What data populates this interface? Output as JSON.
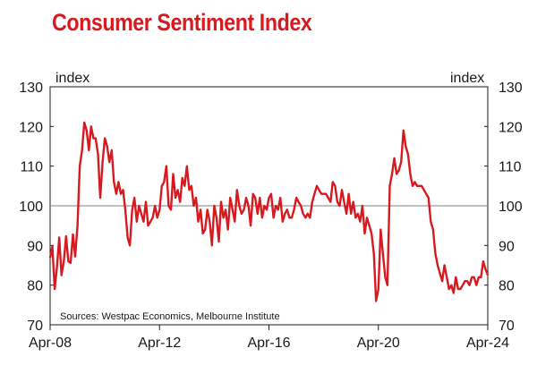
{
  "chart_data": {
    "type": "line",
    "title": "Consumer Sentiment Index",
    "ylabel_left": "index",
    "ylabel_right": "index",
    "ylim": [
      70,
      130
    ],
    "yticks": [
      70,
      80,
      90,
      100,
      110,
      120,
      130
    ],
    "xlim": [
      "2008-04",
      "2024-04"
    ],
    "x_tick_labels": [
      "Apr-08",
      "Apr-12",
      "Apr-16",
      "Apr-20",
      "Apr-24"
    ],
    "reference_line": 100,
    "source_note": "Sources: Westpac Economics, Melbourne Institute",
    "grid": false,
    "colors": {
      "line": "#d71920",
      "title": "#d71920",
      "reference": "#808080",
      "axis": "#1a1a1a"
    },
    "series": [
      {
        "x": [
          "2008-04",
          "2008-05",
          "2008-06",
          "2008-07",
          "2008-08",
          "2008-09",
          "2008-10",
          "2008-11",
          "2008-12",
          "2009-01",
          "2009-02",
          "2009-03",
          "2009-04",
          "2009-05",
          "2009-06",
          "2009-07",
          "2009-08",
          "2009-09",
          "2009-10",
          "2009-11",
          "2009-12",
          "2010-01",
          "2010-02",
          "2010-03",
          "2010-04",
          "2010-05",
          "2010-06",
          "2010-07",
          "2010-08",
          "2010-09",
          "2010-10",
          "2010-11",
          "2010-12",
          "2011-01",
          "2011-02",
          "2011-03",
          "2011-04",
          "2011-05",
          "2011-06",
          "2011-07",
          "2011-08",
          "2011-09",
          "2011-10",
          "2011-11",
          "2011-12",
          "2012-01",
          "2012-02",
          "2012-03",
          "2012-04",
          "2012-05",
          "2012-06",
          "2012-07",
          "2012-08",
          "2012-09",
          "2012-10",
          "2012-11",
          "2012-12",
          "2013-01",
          "2013-02",
          "2013-03",
          "2013-04",
          "2013-05",
          "2013-06",
          "2013-07",
          "2013-08",
          "2013-09",
          "2013-10",
          "2013-11",
          "2013-12",
          "2014-01",
          "2014-02",
          "2014-03",
          "2014-04",
          "2014-05",
          "2014-06",
          "2014-07",
          "2014-08",
          "2014-09",
          "2014-10",
          "2014-11",
          "2014-12",
          "2015-01",
          "2015-02",
          "2015-03",
          "2015-04",
          "2015-05",
          "2015-06",
          "2015-07",
          "2015-08",
          "2015-09",
          "2015-10",
          "2015-11",
          "2015-12",
          "2016-01",
          "2016-02",
          "2016-03",
          "2016-04",
          "2016-05",
          "2016-06",
          "2016-07",
          "2016-08",
          "2016-09",
          "2016-10",
          "2016-11",
          "2016-12",
          "2017-01",
          "2017-02",
          "2017-03",
          "2017-04",
          "2017-05",
          "2017-06",
          "2017-07",
          "2017-08",
          "2017-09",
          "2017-10",
          "2017-11",
          "2017-12",
          "2018-01",
          "2018-02",
          "2018-03",
          "2018-04",
          "2018-05",
          "2018-06",
          "2018-07",
          "2018-08",
          "2018-09",
          "2018-10",
          "2018-11",
          "2018-12",
          "2019-01",
          "2019-02",
          "2019-03",
          "2019-04",
          "2019-05",
          "2019-06",
          "2019-07",
          "2019-08",
          "2019-09",
          "2019-10",
          "2019-11",
          "2019-12",
          "2020-01",
          "2020-02",
          "2020-03",
          "2020-04",
          "2020-05",
          "2020-06",
          "2020-07",
          "2020-08",
          "2020-09",
          "2020-10",
          "2020-11",
          "2020-12",
          "2021-01",
          "2021-02",
          "2021-03",
          "2021-04",
          "2021-05",
          "2021-06",
          "2021-07",
          "2021-08",
          "2021-09",
          "2021-10",
          "2021-11",
          "2021-12",
          "2022-01",
          "2022-02",
          "2022-03",
          "2022-04",
          "2022-05",
          "2022-06",
          "2022-07",
          "2022-08",
          "2022-09",
          "2022-10",
          "2022-11",
          "2022-12",
          "2023-01",
          "2023-02",
          "2023-03",
          "2023-04",
          "2023-05",
          "2023-06",
          "2023-07",
          "2023-08",
          "2023-09",
          "2023-10",
          "2023-11",
          "2023-12",
          "2024-01",
          "2024-02",
          "2024-03",
          "2024-04"
        ],
        "values": [
          86.9,
          89.8,
          79.0,
          84.5,
          92.0,
          82.5,
          86.0,
          92.3,
          86.0,
          85.6,
          92.8,
          87.2,
          95.0,
          110.0,
          114.0,
          121.0,
          119.0,
          114.0,
          120.0,
          117.0,
          117.0,
          113.0,
          102.0,
          111.0,
          117.0,
          115.0,
          111.0,
          114.0,
          106.0,
          103.0,
          106.0,
          103.0,
          104.0,
          99.0,
          92.0,
          90.0,
          99.0,
          102.0,
          96.0,
          100.0,
          98.0,
          96.0,
          101.0,
          95.0,
          96.0,
          97.0,
          100.0,
          97.0,
          99.0,
          105.0,
          106.0,
          110.0,
          100.0,
          99.0,
          108.0,
          102.0,
          104.0,
          101.0,
          107.0,
          105.0,
          110.0,
          104.0,
          105.0,
          100.0,
          102.0,
          96.0,
          99.0,
          93.0,
          94.0,
          99.0,
          96.0,
          90.0,
          100.0,
          97.0,
          91.0,
          101.0,
          97.0,
          99.0,
          94.0,
          102.0,
          99.0,
          96.0,
          104.0,
          100.0,
          98.0,
          99.0,
          102.0,
          100.0,
          95.0,
          103.0,
          102.0,
          98.0,
          102.0,
          97.0,
          100.0,
          99.0,
          102.0,
          103.0,
          97.0,
          100.0,
          99.0,
          102.0,
          96.0,
          98.0,
          99.0,
          97.0,
          97.0,
          99.0,
          102.0,
          101.0,
          100.0,
          98.0,
          97.0,
          98.0,
          97.0,
          101.0,
          103.0,
          105.0,
          104.0,
          103.0,
          103.0,
          103.0,
          102.0,
          101.0,
          106.0,
          105.0,
          101.0,
          100.0,
          104.0,
          101.0,
          98.0,
          103.0,
          98.0,
          101.0,
          97.0,
          98.0,
          96.0,
          100.0,
          93.0,
          97.0,
          95.0,
          93.0,
          88.0,
          76.0,
          79.0,
          94.0,
          88.0,
          82.0,
          80.0,
          105.0,
          108.0,
          112.0,
          108.0,
          109.0,
          111.0,
          119.0,
          115.0,
          113.0,
          108.0,
          105.0,
          106.0,
          105.0,
          105.0,
          105.0,
          104.0,
          103.0,
          102.0,
          96.0,
          94.0,
          88.0,
          85.0,
          83.0,
          81.0,
          85.0,
          82.0,
          79.0,
          80.0,
          78.0,
          82.0,
          79.0,
          79.0,
          80.0,
          81.0,
          81.0,
          80.0,
          82.0,
          82.0,
          80.0,
          82.0,
          82.0,
          86.0,
          84.0,
          82.5
        ]
      }
    ]
  }
}
